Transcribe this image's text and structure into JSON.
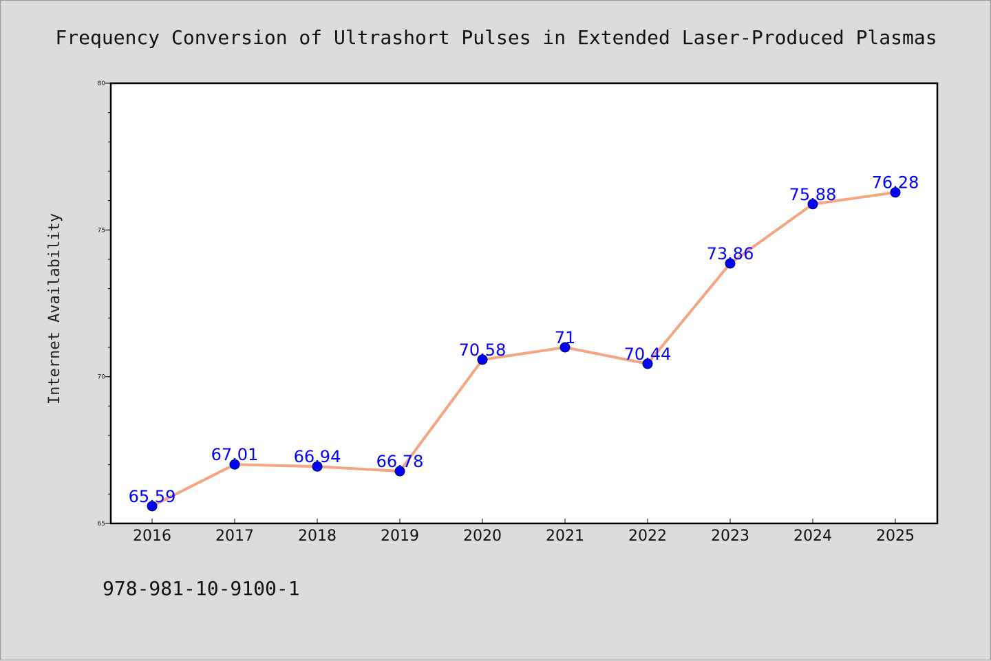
{
  "chart_data": {
    "type": "line",
    "title": "Frequency Conversion of Ultrashort Pulses in Extended Laser-Produced Plasmas",
    "xlabel": "",
    "ylabel": "Internet Availability",
    "x": [
      "2016",
      "2017",
      "2018",
      "2019",
      "2020",
      "2021",
      "2022",
      "2023",
      "2024",
      "2025"
    ],
    "series": [
      {
        "values": [
          65.59,
          67.01,
          66.94,
          66.78,
          70.58,
          71,
          70.44,
          73.86,
          75.88,
          76.28
        ],
        "data_labels": [
          "65.59",
          "67.01",
          "66.94",
          "66.78",
          "70.58",
          "71",
          "70.44",
          "73.86",
          "75.88",
          "76.28"
        ]
      }
    ],
    "ylim": [
      65,
      80
    ],
    "yticks": [
      65,
      70,
      75,
      80
    ],
    "ytick_labels": [
      "65",
      "70",
      "75",
      "80"
    ],
    "y_minor_step": 1,
    "grid": false,
    "legend": "none",
    "colors": {
      "line": "#f4a582",
      "marker": "#0000ff",
      "data_label": "#0000ff",
      "plot_bg": "#ffffff",
      "page_bg": "#dcdcdc"
    }
  },
  "footer": {
    "isbn": "978-981-10-9100-1"
  }
}
